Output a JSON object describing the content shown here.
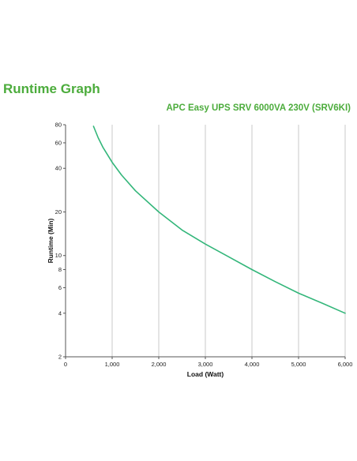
{
  "title": "Runtime Graph",
  "subtitle": "APC Easy UPS SRV 6000VA 230V (SRV6KI)",
  "colors": {
    "title": "#4cac3c",
    "curve": "#33b67a",
    "grid": "#c8c8c8",
    "axis": "#555555"
  },
  "chart_data": {
    "type": "line",
    "title": "Runtime Graph",
    "subtitle": "APC Easy UPS SRV 6000VA 230V (SRV6KI)",
    "xlabel": "Load (Watt)",
    "ylabel": "Runtime (Min)",
    "x_scale": "linear",
    "y_scale": "log",
    "xlim": [
      0,
      6000
    ],
    "ylim": [
      2,
      80
    ],
    "x_ticks": [
      0,
      1000,
      2000,
      3000,
      4000,
      5000,
      6000
    ],
    "x_tick_labels": [
      "0",
      "1,000",
      "2,000",
      "3,000",
      "4,000",
      "5,000",
      "6,000"
    ],
    "y_ticks": [
      2,
      4,
      6,
      8,
      10,
      20,
      40,
      60,
      80
    ],
    "y_tick_labels": [
      "2",
      "4",
      "6",
      "8",
      "10",
      "20",
      "40",
      "60",
      "80"
    ],
    "grid": "vertical",
    "series": [
      {
        "x": [
          600,
          700,
          800,
          1000,
          1200,
          1500,
          2000,
          2500,
          3000,
          3500,
          4000,
          4500,
          5000,
          5500,
          6000
        ],
        "values": [
          78,
          65,
          56,
          44,
          36,
          28,
          20,
          15,
          12,
          9.8,
          8,
          6.6,
          5.5,
          4.7,
          4
        ]
      }
    ]
  }
}
